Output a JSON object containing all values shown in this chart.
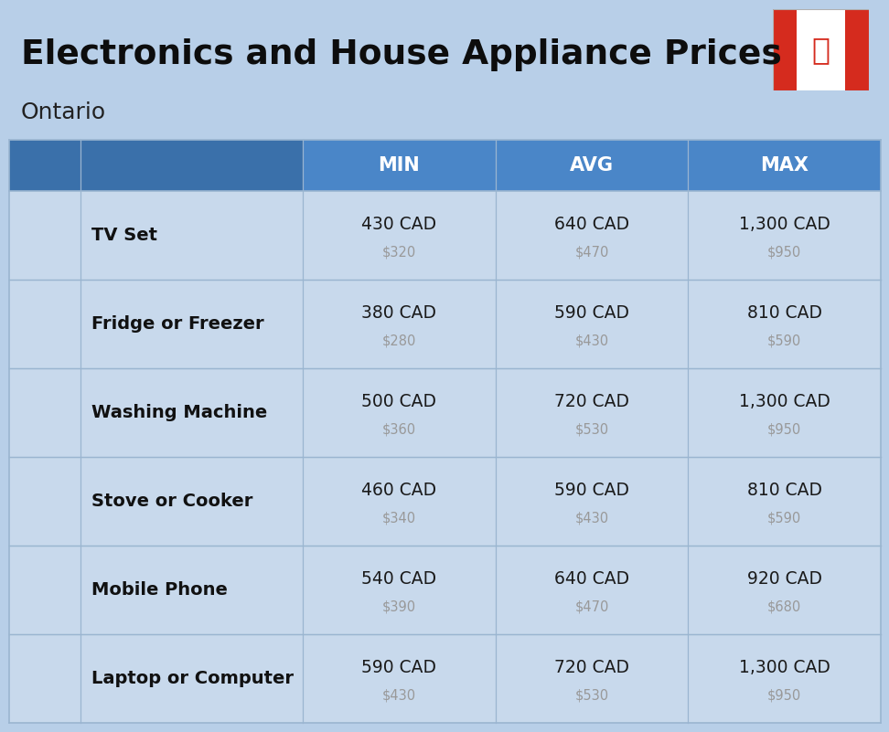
{
  "title": "Electronics and House Appliance Prices",
  "subtitle": "Ontario",
  "bg_color": "#b8cfe8",
  "header_color": "#4a86c8",
  "header_dark_color": "#3a70aa",
  "header_text_color": "#ffffff",
  "row_bg_color": "#c8d9ec",
  "row_alt_color": "#bdd0e8",
  "divider_color": "#9ab5d0",
  "item_name_color": "#111111",
  "cad_color": "#1a1a1a",
  "usd_color": "#999999",
  "headers": [
    "MIN",
    "AVG",
    "MAX"
  ],
  "rows": [
    {
      "name": "TV Set",
      "min_cad": "430 CAD",
      "min_usd": "$320",
      "avg_cad": "640 CAD",
      "avg_usd": "$470",
      "max_cad": "1,300 CAD",
      "max_usd": "$950"
    },
    {
      "name": "Fridge or Freezer",
      "min_cad": "380 CAD",
      "min_usd": "$280",
      "avg_cad": "590 CAD",
      "avg_usd": "$430",
      "max_cad": "810 CAD",
      "max_usd": "$590"
    },
    {
      "name": "Washing Machine",
      "min_cad": "500 CAD",
      "min_usd": "$360",
      "avg_cad": "720 CAD",
      "avg_usd": "$530",
      "max_cad": "1,300 CAD",
      "max_usd": "$950"
    },
    {
      "name": "Stove or Cooker",
      "min_cad": "460 CAD",
      "min_usd": "$340",
      "avg_cad": "590 CAD",
      "avg_usd": "$430",
      "max_cad": "810 CAD",
      "max_usd": "$590"
    },
    {
      "name": "Mobile Phone",
      "min_cad": "540 CAD",
      "min_usd": "$390",
      "avg_cad": "640 CAD",
      "avg_usd": "$470",
      "max_cad": "920 CAD",
      "max_usd": "$680"
    },
    {
      "name": "Laptop or Computer",
      "min_cad": "590 CAD",
      "min_usd": "$430",
      "avg_cad": "720 CAD",
      "avg_usd": "$530",
      "max_cad": "1,300 CAD",
      "max_usd": "$950"
    }
  ]
}
